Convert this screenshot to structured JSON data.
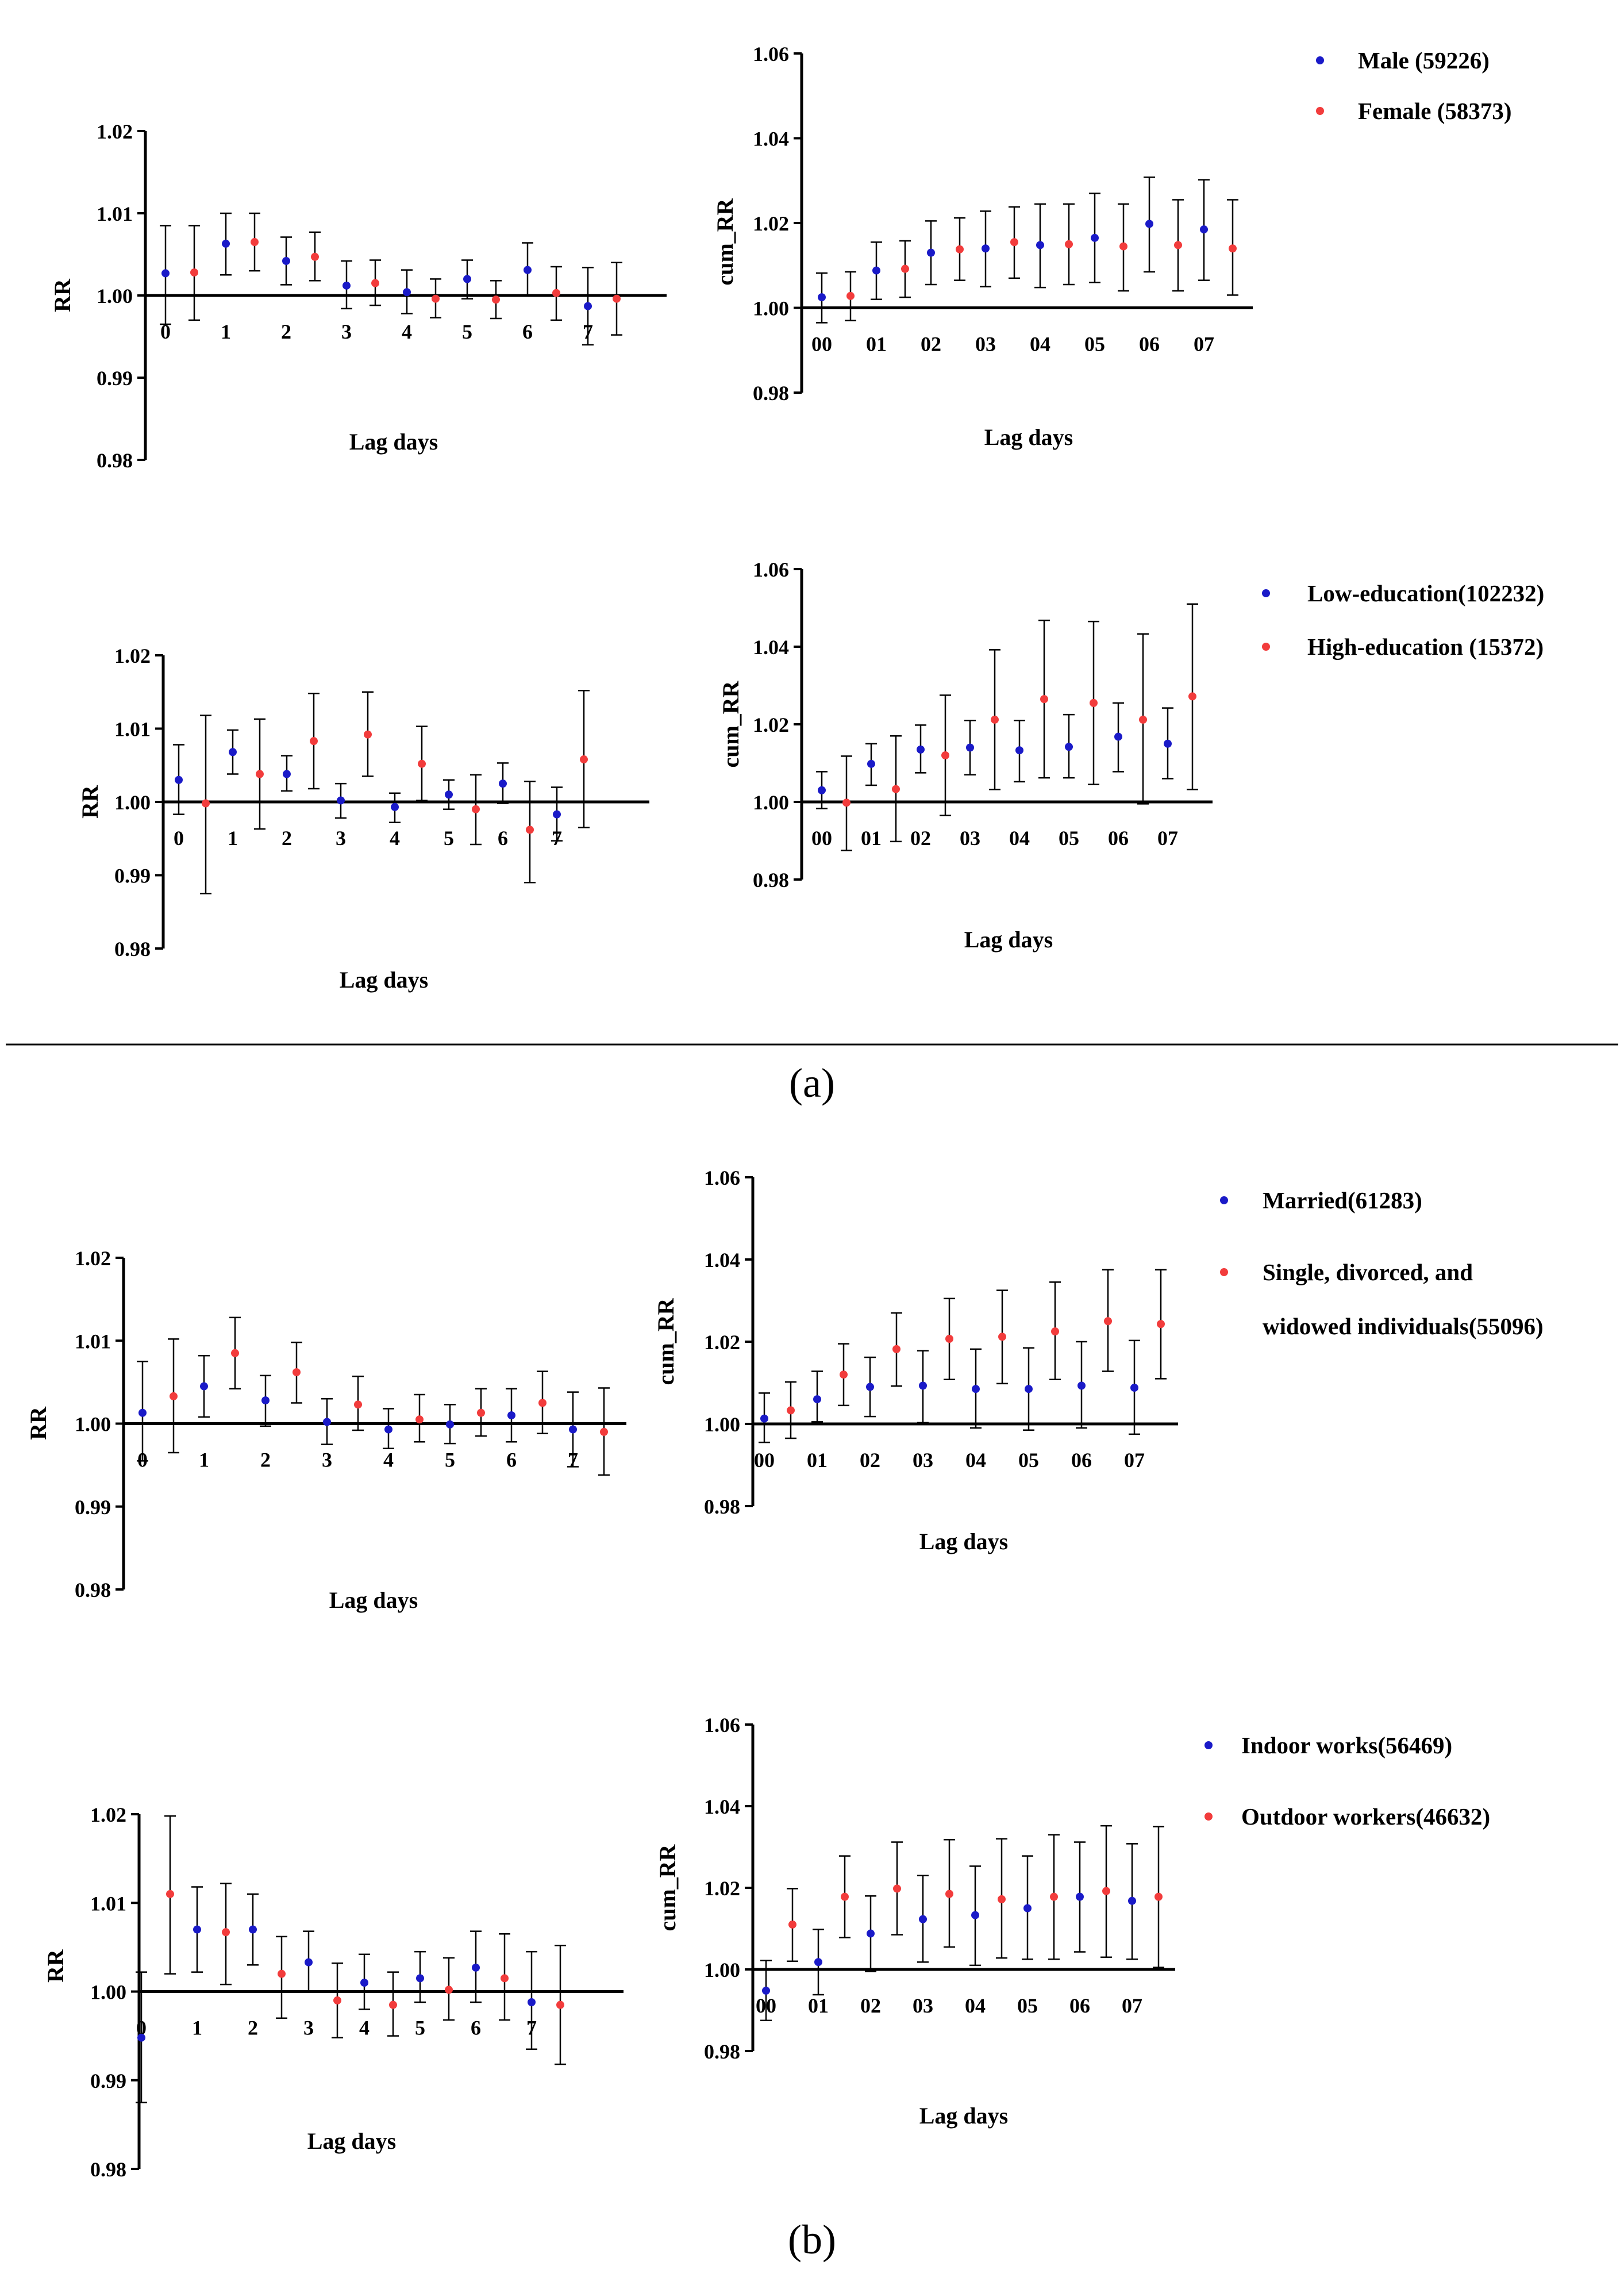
{
  "panel_labels": {
    "a": "(a)",
    "b": "(b)"
  },
  "colors": {
    "blue": "#1a1ac8",
    "red": "#f23c3c",
    "axis": "#000000"
  },
  "chart_data": [
    {
      "type": "scatter",
      "subtype": "point-estimate with 95% CI",
      "xlabel": "Lag days",
      "ylabel": "RR",
      "ylim": [
        0.98,
        1.02
      ],
      "yticks": [
        "0.98",
        "0.99",
        "1.00",
        "1.01",
        "1.02"
      ],
      "categories": [
        "0",
        "1",
        "2",
        "3",
        "4",
        "5",
        "6",
        "7"
      ],
      "series": [
        {
          "name": "Male (59226)",
          "color": "blue",
          "values": [
            1.0027,
            1.0063,
            1.0042,
            1.0012,
            1.0004,
            1.002,
            1.0031,
            0.9987
          ],
          "lower": [
            0.9965,
            1.0025,
            1.0013,
            0.9984,
            0.9978,
            0.9996,
            1.0,
            0.994
          ],
          "upper": [
            1.0085,
            1.01,
            1.0071,
            1.0042,
            1.0031,
            1.0043,
            1.0064,
            1.0034
          ]
        },
        {
          "name": "Female (58373)",
          "color": "red",
          "values": [
            1.0028,
            1.0065,
            1.0047,
            1.0015,
            0.9996,
            0.9995,
            1.0003,
            0.9996
          ],
          "lower": [
            0.997,
            1.003,
            1.0018,
            0.9988,
            0.9973,
            0.9972,
            0.997,
            0.9952
          ],
          "upper": [
            1.0085,
            1.01,
            1.0077,
            1.0043,
            1.002,
            1.0018,
            1.0035,
            1.004
          ]
        }
      ]
    },
    {
      "type": "scatter",
      "subtype": "point-estimate with 95% CI",
      "xlabel": "Lag days",
      "ylabel": "cum_RR",
      "ylim": [
        0.98,
        1.06
      ],
      "yticks": [
        "0.98",
        "1.00",
        "1.02",
        "1.04",
        "1.06"
      ],
      "categories": [
        "00",
        "01",
        "02",
        "03",
        "04",
        "05",
        "06",
        "07"
      ],
      "series": [
        {
          "name": "Male (59226)",
          "color": "blue",
          "values": [
            1.0025,
            1.0088,
            1.013,
            1.014,
            1.0148,
            1.0165,
            1.0198,
            1.0185
          ],
          "lower": [
            0.9965,
            1.002,
            1.0055,
            1.005,
            1.0048,
            1.006,
            1.0085,
            1.0065
          ],
          "upper": [
            1.0082,
            1.0155,
            1.0205,
            1.0228,
            1.0245,
            1.027,
            1.0308,
            1.0302
          ]
        },
        {
          "name": "Female (58373)",
          "color": "red",
          "values": [
            1.0028,
            1.0092,
            1.0138,
            1.0155,
            1.015,
            1.0145,
            1.0148,
            1.014
          ],
          "lower": [
            0.997,
            1.0025,
            1.0065,
            1.007,
            1.0055,
            1.004,
            1.004,
            1.003
          ],
          "upper": [
            1.0085,
            1.0158,
            1.0212,
            1.0238,
            1.0245,
            1.0245,
            1.0255,
            1.0255
          ]
        }
      ]
    },
    {
      "type": "scatter",
      "subtype": "point-estimate with 95% CI",
      "xlabel": "Lag days",
      "ylabel": "RR",
      "ylim": [
        0.98,
        1.02
      ],
      "yticks": [
        "0.98",
        "0.99",
        "1.00",
        "1.01",
        "1.02"
      ],
      "categories": [
        "0",
        "1",
        "2",
        "3",
        "4",
        "5",
        "6",
        "7"
      ],
      "series": [
        {
          "name": "Low-education(102232)",
          "color": "blue",
          "values": [
            1.003,
            1.0068,
            1.0038,
            1.0002,
            0.9993,
            1.001,
            1.0025,
            0.9983
          ],
          "lower": [
            0.9983,
            1.0038,
            1.0015,
            0.9978,
            0.9972,
            0.999,
            0.9998,
            0.9947
          ],
          "upper": [
            1.0078,
            1.0098,
            1.0063,
            1.0025,
            1.0012,
            1.003,
            1.0053,
            1.002
          ]
        },
        {
          "name": "High-education (15372)",
          "color": "red",
          "values": [
            0.9998,
            1.0038,
            1.0083,
            1.0092,
            1.0052,
            0.999,
            0.9962,
            1.0058
          ],
          "lower": [
            0.9875,
            0.9963,
            1.0018,
            1.0035,
            1.0002,
            0.9942,
            0.989,
            0.9965
          ],
          "upper": [
            1.0118,
            1.0113,
            1.0148,
            1.015,
            1.0103,
            1.0037,
            1.0028,
            1.0152
          ]
        }
      ]
    },
    {
      "type": "scatter",
      "subtype": "point-estimate with 95% CI",
      "xlabel": "Lag days",
      "ylabel": "cum_RR",
      "ylim": [
        0.98,
        1.06
      ],
      "yticks": [
        "0.98",
        "1.00",
        "1.02",
        "1.04",
        "1.06"
      ],
      "categories": [
        "00",
        "01",
        "02",
        "03",
        "04",
        "05",
        "06",
        "07"
      ],
      "series": [
        {
          "name": "Low-education(102232)",
          "color": "blue",
          "values": [
            1.003,
            1.0098,
            1.0135,
            1.014,
            1.0133,
            1.0142,
            1.0168,
            1.015
          ],
          "lower": [
            0.9983,
            1.0043,
            1.0075,
            1.007,
            1.0052,
            1.0062,
            1.0078,
            1.006
          ],
          "upper": [
            1.0078,
            1.015,
            1.0198,
            1.021,
            1.021,
            1.0225,
            1.0255,
            1.0242
          ]
        },
        {
          "name": "High-education (15372)",
          "color": "red",
          "values": [
            0.9998,
            1.0033,
            1.012,
            1.0212,
            1.0265,
            1.0255,
            1.0212,
            1.0272
          ],
          "lower": [
            0.9875,
            0.9898,
            0.9965,
            1.0032,
            1.0062,
            1.0045,
            0.9995,
            1.0032
          ],
          "upper": [
            1.0118,
            1.017,
            1.0275,
            1.0392,
            1.0468,
            1.0465,
            1.0433,
            1.051
          ]
        }
      ]
    },
    {
      "type": "scatter",
      "subtype": "point-estimate with 95% CI",
      "xlabel": "Lag days",
      "ylabel": "RR",
      "ylim": [
        0.98,
        1.02
      ],
      "yticks": [
        "0.98",
        "0.99",
        "1.00",
        "1.01",
        "1.02"
      ],
      "categories": [
        "0",
        "1",
        "2",
        "3",
        "4",
        "5",
        "6",
        "7"
      ],
      "series": [
        {
          "name": "Married(61283)",
          "color": "blue",
          "values": [
            1.0013,
            1.0045,
            1.0028,
            1.0002,
            0.9993,
            0.9999,
            1.001,
            0.9993
          ],
          "lower": [
            0.9955,
            1.0008,
            0.9997,
            0.9975,
            0.997,
            0.9976,
            0.9978,
            0.9948
          ],
          "upper": [
            1.0075,
            1.0082,
            1.0058,
            1.003,
            1.0018,
            1.0023,
            1.0042,
            1.0038
          ]
        },
        {
          "name": "Single, divorced, and widowed individuals(55096)",
          "color": "red",
          "values": [
            1.0033,
            1.0085,
            1.0062,
            1.0023,
            1.0005,
            1.0013,
            1.0025,
            0.999
          ],
          "lower": [
            0.9965,
            1.0042,
            1.0025,
            0.9992,
            0.9978,
            0.9985,
            0.9988,
            0.9938
          ],
          "upper": [
            1.0102,
            1.0128,
            1.0098,
            1.0057,
            1.0035,
            1.0042,
            1.0063,
            1.0043
          ]
        }
      ]
    },
    {
      "type": "scatter",
      "subtype": "point-estimate with 95% CI",
      "xlabel": "Lag days",
      "ylabel": "cum_RR",
      "ylim": [
        0.98,
        1.06
      ],
      "yticks": [
        "0.98",
        "1.00",
        "1.02",
        "1.04",
        "1.06"
      ],
      "categories": [
        "00",
        "01",
        "02",
        "03",
        "04",
        "05",
        "06",
        "07"
      ],
      "series": [
        {
          "name": "Married(61283)",
          "color": "blue",
          "values": [
            1.0013,
            1.006,
            1.009,
            1.0093,
            1.0085,
            1.0085,
            1.0093,
            1.0088
          ],
          "lower": [
            0.9955,
            1.0005,
            1.0018,
            1.0003,
            0.999,
            0.9985,
            0.999,
            0.9975
          ],
          "upper": [
            1.0075,
            1.0128,
            1.0162,
            1.0178,
            1.0182,
            1.0185,
            1.02,
            1.0203
          ]
        },
        {
          "name": "Single, divorced, and widowed individuals(55096)",
          "color": "red",
          "values": [
            1.0033,
            1.012,
            1.0182,
            1.0207,
            1.0212,
            1.0225,
            1.025,
            1.0243
          ],
          "lower": [
            0.9965,
            1.0045,
            1.0092,
            1.0108,
            1.0098,
            1.0108,
            1.0128,
            1.011
          ],
          "upper": [
            1.0102,
            1.0195,
            1.027,
            1.0305,
            1.0325,
            1.0345,
            1.0375,
            1.0375
          ]
        }
      ]
    },
    {
      "type": "scatter",
      "subtype": "point-estimate with 95% CI",
      "xlabel": "Lag days",
      "ylabel": "RR",
      "ylim": [
        0.98,
        1.02
      ],
      "yticks": [
        "0.98",
        "0.99",
        "1.00",
        "1.01",
        "1.02"
      ],
      "categories": [
        "0",
        "1",
        "2",
        "3",
        "4",
        "5",
        "6",
        "7"
      ],
      "series": [
        {
          "name": "Indoor works(56469)",
          "color": "blue",
          "values": [
            0.9948,
            1.007,
            1.007,
            1.0033,
            1.001,
            1.0015,
            1.0027,
            0.9988
          ],
          "lower": [
            0.9875,
            1.0022,
            1.003,
            1.0,
            0.998,
            0.9988,
            0.9988,
            0.9935
          ],
          "upper": [
            1.0022,
            1.0118,
            1.011,
            1.0068,
            1.0042,
            1.0045,
            1.0068,
            1.0045
          ]
        },
        {
          "name": "Outdoor workers(46632)",
          "color": "red",
          "values": [
            1.011,
            1.0067,
            1.002,
            0.999,
            0.9985,
            1.0002,
            1.0015,
            0.9985
          ],
          "lower": [
            1.002,
            1.0008,
            0.997,
            0.9948,
            0.995,
            0.9968,
            0.9968,
            0.9918
          ],
          "upper": [
            1.0198,
            1.0122,
            1.0062,
            1.0032,
            1.0022,
            1.0038,
            1.0065,
            1.0052
          ]
        }
      ]
    },
    {
      "type": "scatter",
      "subtype": "point-estimate with 95% CI",
      "xlabel": "Lag days",
      "ylabel": "cum_RR",
      "ylim": [
        0.98,
        1.06
      ],
      "yticks": [
        "0.98",
        "1.00",
        "1.02",
        "1.04",
        "1.06"
      ],
      "categories": [
        "00",
        "01",
        "02",
        "03",
        "04",
        "05",
        "06",
        "07"
      ],
      "series": [
        {
          "name": "Indoor works(56469)",
          "color": "blue",
          "values": [
            0.9948,
            1.0018,
            1.0088,
            1.0123,
            1.0133,
            1.015,
            1.0178,
            1.0168
          ],
          "lower": [
            0.9875,
            0.9938,
            0.9995,
            1.0018,
            1.001,
            1.0025,
            1.0043,
            1.0025
          ],
          "upper": [
            1.0022,
            1.0098,
            1.018,
            1.023,
            1.0253,
            1.0278,
            1.0312,
            1.0308
          ]
        },
        {
          "name": "Outdoor workers(46632)",
          "color": "red",
          "values": [
            1.011,
            1.0178,
            1.0198,
            1.0185,
            1.0172,
            1.0178,
            1.0192,
            1.0178
          ],
          "lower": [
            1.002,
            1.0078,
            1.0085,
            1.0055,
            1.0028,
            1.0025,
            1.003,
            1.0005
          ],
          "upper": [
            1.0198,
            1.0278,
            1.0312,
            1.0318,
            1.032,
            1.033,
            1.0352,
            1.035
          ]
        }
      ]
    }
  ]
}
